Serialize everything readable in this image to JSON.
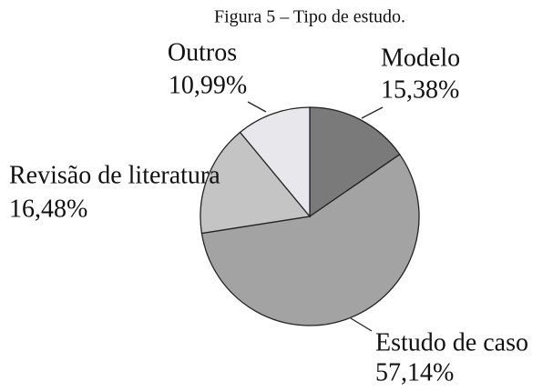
{
  "chart_data": {
    "type": "pie",
    "title": "Figura 5 – Tipo de estudo.",
    "categories": [
      "Modelo",
      "Estudo de caso",
      "Revisão de literatura",
      "Outros"
    ],
    "values": [
      15.38,
      57.14,
      16.48,
      10.99
    ],
    "value_labels": [
      "15,38%",
      "57,14%",
      "16,48%",
      "10,99%"
    ],
    "colors": [
      "#7a7a7a",
      "#a3a3a3",
      "#c4c4c4",
      "#e8e8ec"
    ]
  }
}
